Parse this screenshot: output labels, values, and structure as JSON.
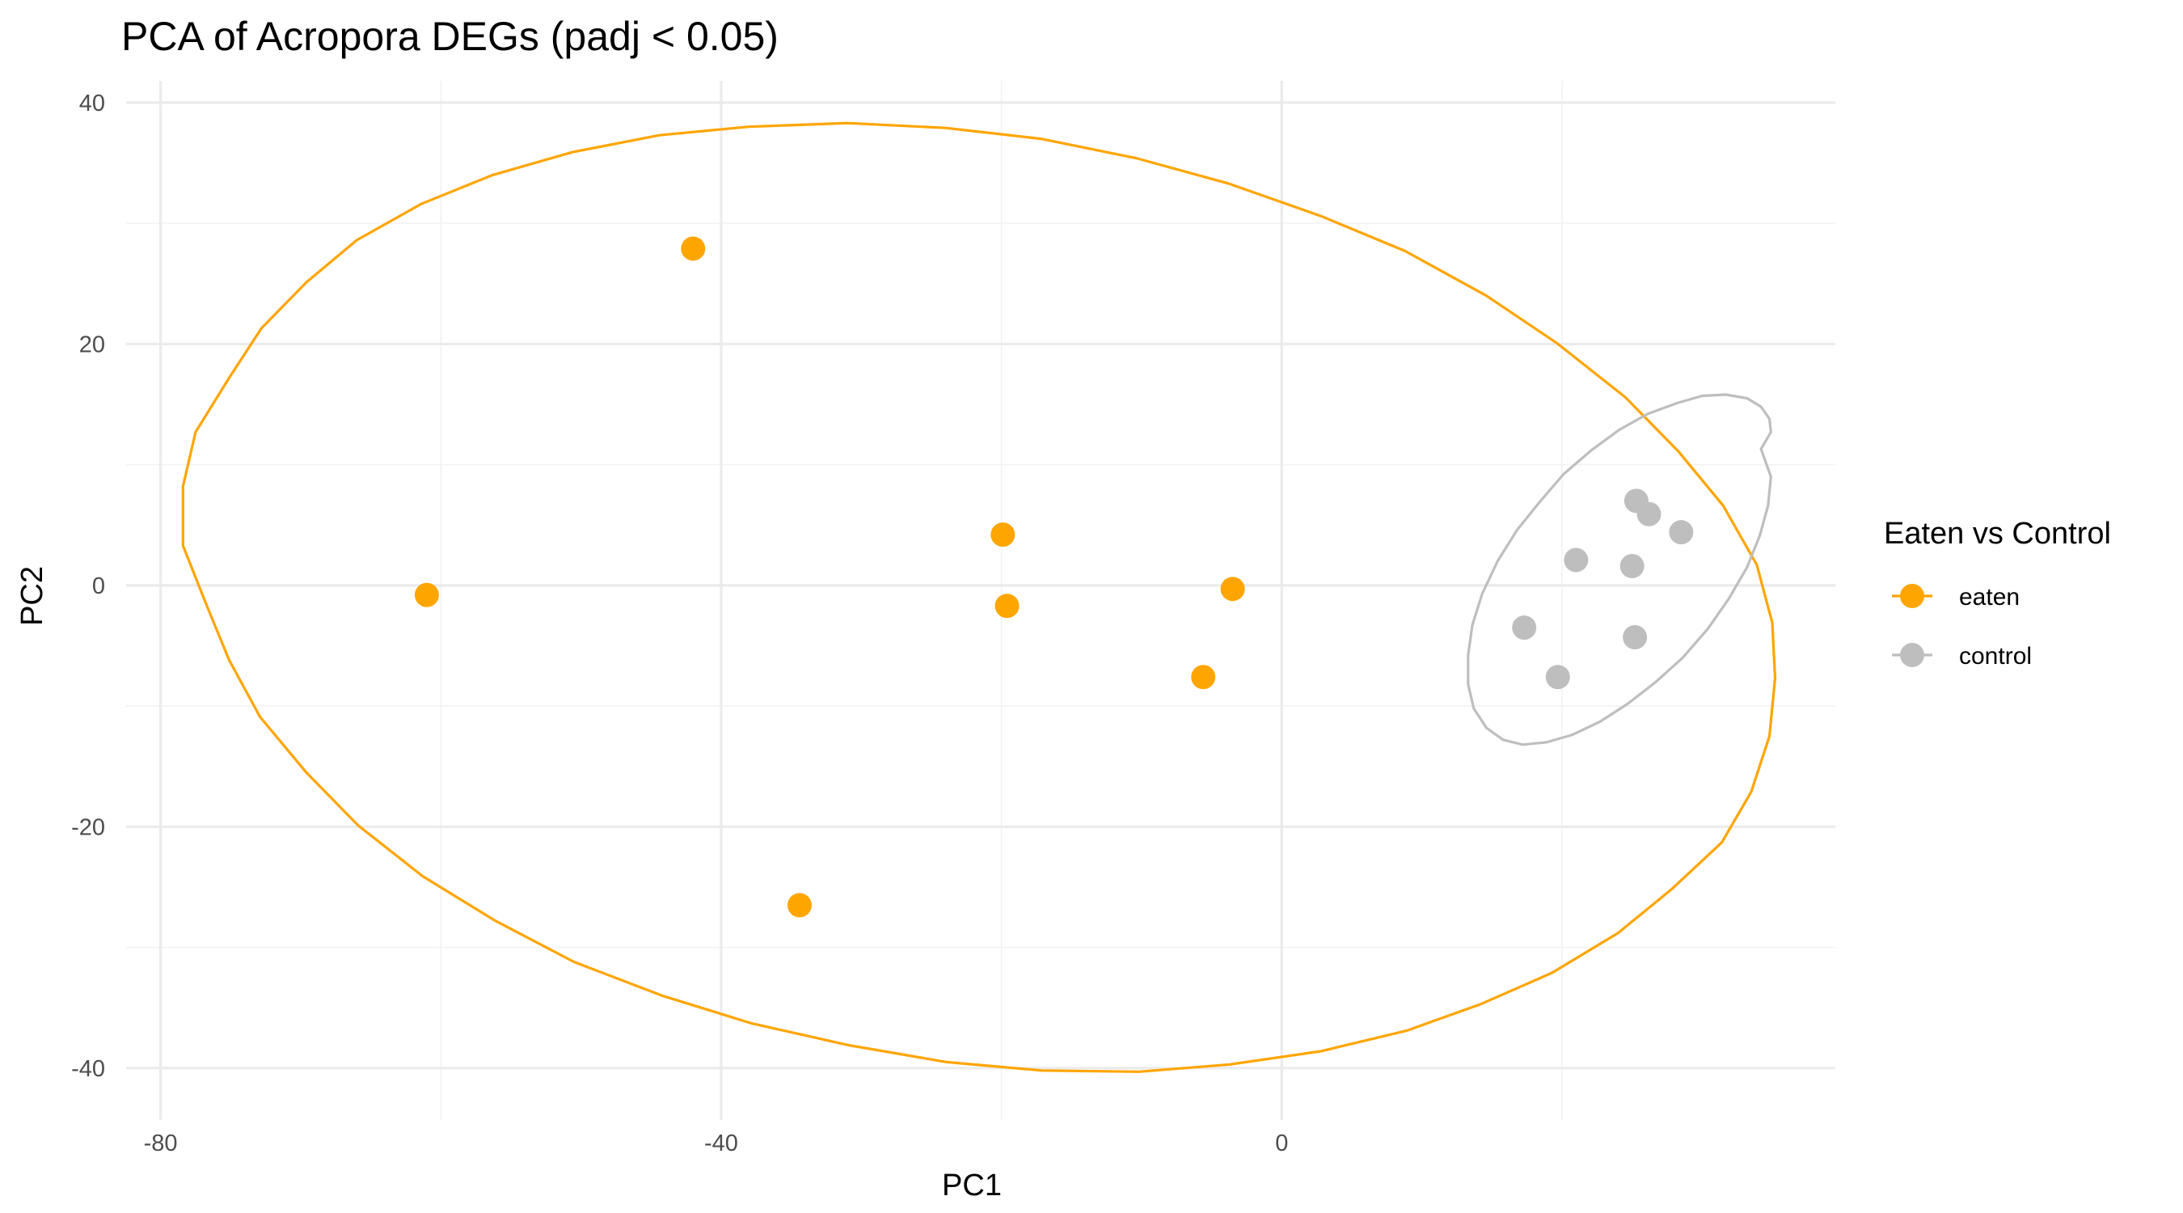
{
  "chart_data": {
    "type": "scatter",
    "title": "PCA of Acropora DEGs (padj < 0.05)",
    "xlabel": "PC1",
    "ylabel": "PC2",
    "xlim": [
      -82.8,
      39.5
    ],
    "ylim": [
      -44.3,
      41.8
    ],
    "xticks": [
      -80,
      -40,
      0
    ],
    "yticks": [
      -40,
      -20,
      0,
      20,
      40
    ],
    "grid": true,
    "legend": {
      "title": "Eaten vs Control",
      "position": "right"
    },
    "series": [
      {
        "name": "eaten",
        "color": "#FFA500",
        "points": [
          {
            "x": -61.0,
            "y": -0.8
          },
          {
            "x": -42.0,
            "y": 27.9
          },
          {
            "x": -19.9,
            "y": 4.2
          },
          {
            "x": -19.6,
            "y": -1.7
          },
          {
            "x": -34.4,
            "y": -26.5
          },
          {
            "x": -3.5,
            "y": -0.3
          },
          {
            "x": -5.6,
            "y": -7.6
          }
        ],
        "ellipse": [
          [
            -78.4,
            8.2
          ],
          [
            -77.5,
            12.7
          ],
          [
            -75.1,
            17.2
          ],
          [
            -72.8,
            21.3
          ],
          [
            -69.6,
            25.1
          ],
          [
            -66.0,
            28.6
          ],
          [
            -61.4,
            31.6
          ],
          [
            -56.3,
            34.0
          ],
          [
            -50.6,
            35.9
          ],
          [
            -44.4,
            37.3
          ],
          [
            -38.0,
            38.0
          ],
          [
            -31.0,
            38.3
          ],
          [
            -24.0,
            37.9
          ],
          [
            -17.2,
            37.0
          ],
          [
            -10.4,
            35.4
          ],
          [
            -3.8,
            33.3
          ],
          [
            2.8,
            30.6
          ],
          [
            8.8,
            27.7
          ],
          [
            14.6,
            24.0
          ],
          [
            19.6,
            20.1
          ],
          [
            24.5,
            15.6
          ],
          [
            28.3,
            11.1
          ],
          [
            31.5,
            6.6
          ],
          [
            33.9,
            1.7
          ],
          [
            35.0,
            -3.1
          ],
          [
            35.2,
            -7.7
          ],
          [
            34.8,
            -12.5
          ],
          [
            33.5,
            -17.1
          ],
          [
            31.4,
            -21.3
          ],
          [
            27.8,
            -25.2
          ],
          [
            24.0,
            -28.8
          ],
          [
            19.3,
            -32.1
          ],
          [
            14.2,
            -34.7
          ],
          [
            8.9,
            -36.9
          ],
          [
            2.8,
            -38.6
          ],
          [
            -3.7,
            -39.7
          ],
          [
            -10.2,
            -40.3
          ],
          [
            -17.1,
            -40.2
          ],
          [
            -23.9,
            -39.5
          ],
          [
            -30.9,
            -38.1
          ],
          [
            -37.8,
            -36.3
          ],
          [
            -44.2,
            -34.0
          ],
          [
            -50.5,
            -31.2
          ],
          [
            -56.1,
            -27.8
          ],
          [
            -61.3,
            -24.1
          ],
          [
            -65.9,
            -19.9
          ],
          [
            -69.6,
            -15.5
          ],
          [
            -72.9,
            -10.9
          ],
          [
            -75.1,
            -6.2
          ],
          [
            -76.8,
            -1.4
          ],
          [
            -78.4,
            3.3
          ]
        ]
      },
      {
        "name": "control",
        "color": "#BEBEBE",
        "points": [
          {
            "x": 25.3,
            "y": 7.0
          },
          {
            "x": 26.2,
            "y": 5.9
          },
          {
            "x": 28.5,
            "y": 4.4
          },
          {
            "x": 21.0,
            "y": 2.1
          },
          {
            "x": 25.0,
            "y": 1.6
          },
          {
            "x": 17.3,
            "y": -3.5
          },
          {
            "x": 25.2,
            "y": -4.3
          },
          {
            "x": 19.7,
            "y": -7.6
          }
        ],
        "ellipse": [
          [
            34.2,
            11.3
          ],
          [
            34.9,
            12.7
          ],
          [
            34.8,
            13.8
          ],
          [
            34.2,
            14.8
          ],
          [
            33.2,
            15.5
          ],
          [
            31.7,
            15.8
          ],
          [
            30.0,
            15.7
          ],
          [
            28.2,
            15.1
          ],
          [
            26.1,
            14.2
          ],
          [
            24.1,
            12.9
          ],
          [
            22.1,
            11.2
          ],
          [
            20.1,
            9.2
          ],
          [
            18.4,
            6.9
          ],
          [
            16.8,
            4.6
          ],
          [
            15.4,
            2.0
          ],
          [
            14.3,
            -0.7
          ],
          [
            13.6,
            -3.3
          ],
          [
            13.3,
            -5.8
          ],
          [
            13.3,
            -8.2
          ],
          [
            13.7,
            -10.2
          ],
          [
            14.6,
            -11.8
          ],
          [
            15.8,
            -12.8
          ],
          [
            17.2,
            -13.2
          ],
          [
            18.9,
            -13.0
          ],
          [
            20.7,
            -12.4
          ],
          [
            22.7,
            -11.3
          ],
          [
            24.7,
            -9.8
          ],
          [
            26.7,
            -8.0
          ],
          [
            28.6,
            -6.0
          ],
          [
            30.4,
            -3.6
          ],
          [
            31.9,
            -1.1
          ],
          [
            33.2,
            1.5
          ],
          [
            34.1,
            4.1
          ],
          [
            34.7,
            6.6
          ],
          [
            34.9,
            9.0
          ]
        ]
      }
    ]
  }
}
